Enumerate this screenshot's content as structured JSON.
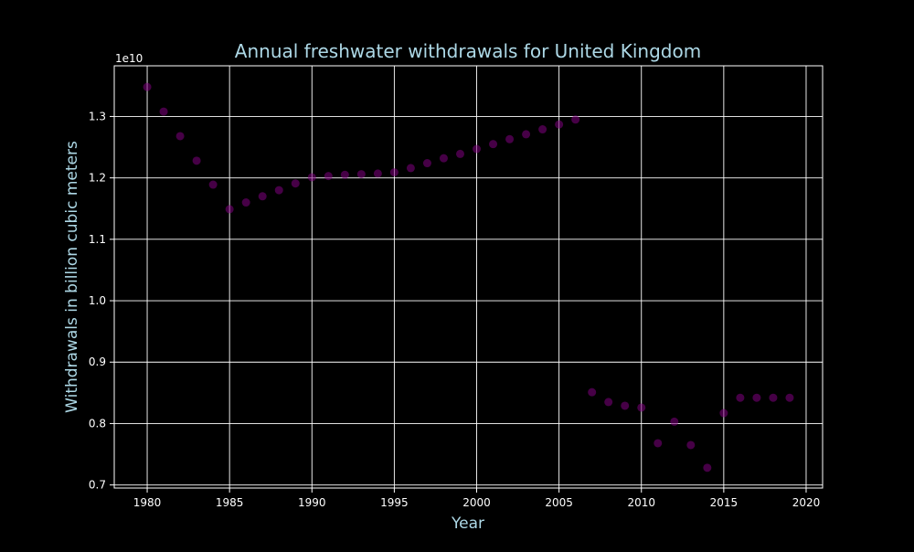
{
  "chart_data": {
    "type": "scatter",
    "title": "Annual freshwater withdrawals for United Kingdom",
    "xlabel": "Year",
    "ylabel": "Withdrawals in billion cubic meters",
    "y_offset_label": "1e10",
    "xlim": [
      1978,
      2021
    ],
    "ylim": [
      0.695,
      1.3825
    ],
    "x_ticks": [
      1980,
      1985,
      1990,
      1995,
      2000,
      2005,
      2010,
      2015,
      2020
    ],
    "y_ticks": [
      0.7,
      0.8,
      0.9,
      1.0,
      1.1,
      1.2,
      1.3
    ],
    "y_tick_labels": [
      "0.7",
      "0.8",
      "0.9",
      "1.0",
      "1.1",
      "1.2",
      "1.3"
    ],
    "grid": true,
    "colors": {
      "background": "#000000",
      "marker": "#800080",
      "grid": "#ffffff",
      "text": "#add8e6",
      "ticks": "#ffffff"
    },
    "x": [
      1980,
      1981,
      1982,
      1983,
      1984,
      1985,
      1986,
      1987,
      1988,
      1989,
      1990,
      1991,
      1992,
      1993,
      1994,
      1995,
      1996,
      1997,
      1998,
      1999,
      2000,
      2001,
      2002,
      2003,
      2004,
      2005,
      2006,
      2007,
      2008,
      2009,
      2010,
      2011,
      2012,
      2013,
      2014,
      2015,
      2016,
      2017,
      2018,
      2019
    ],
    "y": [
      1.348,
      1.308,
      1.268,
      1.228,
      1.189,
      1.149,
      1.16,
      1.17,
      1.18,
      1.191,
      1.201,
      1.203,
      1.205,
      1.206,
      1.207,
      1.209,
      1.216,
      1.224,
      1.232,
      1.239,
      1.247,
      1.255,
      1.263,
      1.271,
      1.279,
      1.287,
      1.295,
      0.851,
      0.835,
      0.829,
      0.826,
      0.768,
      0.803,
      0.765,
      0.728,
      0.817,
      0.842,
      0.842,
      0.842,
      0.842
    ]
  }
}
